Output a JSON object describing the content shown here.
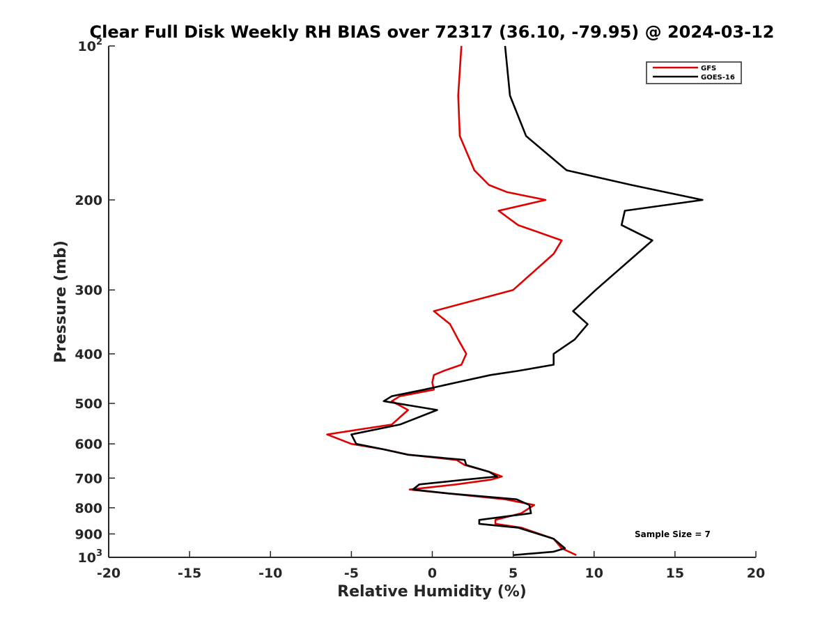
{
  "chart_data": {
    "type": "line",
    "title": "Clear Full Disk Weekly RH BIAS over 72317 (36.10, -79.95) @ 2024-03-12",
    "xlabel": "Relative Humidity (%)",
    "ylabel": "Pressure (mb)",
    "xlim": [
      -20,
      20
    ],
    "ylim": [
      100,
      1000
    ],
    "y_scale": "log",
    "y_reversed": true,
    "x_ticks": [
      "-20",
      "-15",
      "-10",
      "-5",
      "0",
      "5",
      "10",
      "15",
      "20"
    ],
    "y_ticks": [
      {
        "value": 100,
        "base": "10",
        "exp": "2"
      },
      {
        "value": 200,
        "base": "200",
        "exp": ""
      },
      {
        "value": 300,
        "base": "300",
        "exp": ""
      },
      {
        "value": 400,
        "base": "400",
        "exp": ""
      },
      {
        "value": 500,
        "base": "500",
        "exp": ""
      },
      {
        "value": 600,
        "base": "600",
        "exp": ""
      },
      {
        "value": 700,
        "base": "700",
        "exp": ""
      },
      {
        "value": 800,
        "base": "800",
        "exp": ""
      },
      {
        "value": 900,
        "base": "900",
        "exp": ""
      },
      {
        "value": 1000,
        "base": "10",
        "exp": "3"
      }
    ],
    "grid": false,
    "legend_position": "top-right",
    "annotation": "Sample Size = 7",
    "series": [
      {
        "name": "GFS",
        "color": "#e00000",
        "points": [
          [
            1.8,
            100
          ],
          [
            1.6,
            125
          ],
          [
            1.7,
            150
          ],
          [
            2.6,
            175
          ],
          [
            3.5,
            187
          ],
          [
            4.6,
            193
          ],
          [
            7.0,
            200
          ],
          [
            4.1,
            210
          ],
          [
            5.3,
            224
          ],
          [
            8.0,
            240
          ],
          [
            7.5,
            255
          ],
          [
            5.0,
            300
          ],
          [
            0.1,
            330
          ],
          [
            1.1,
            350
          ],
          [
            1.6,
            375
          ],
          [
            2.1,
            400
          ],
          [
            1.8,
            420
          ],
          [
            0.7,
            432
          ],
          [
            0.1,
            440
          ],
          [
            0.0,
            455
          ],
          [
            0.1,
            470
          ],
          [
            -2.0,
            484
          ],
          [
            -2.5,
            495
          ],
          [
            -1.5,
            515
          ],
          [
            -2.5,
            550
          ],
          [
            -6.5,
            575
          ],
          [
            -5.0,
            600
          ],
          [
            -3.0,
            615
          ],
          [
            -1.5,
            630
          ],
          [
            1.5,
            645
          ],
          [
            2.0,
            660
          ],
          [
            3.5,
            680
          ],
          [
            4.3,
            695
          ],
          [
            3.6,
            705
          ],
          [
            1.5,
            720
          ],
          [
            -1.4,
            737
          ],
          [
            1.0,
            750
          ],
          [
            4.5,
            770
          ],
          [
            6.3,
            790
          ],
          [
            5.5,
            820
          ],
          [
            3.9,
            845
          ],
          [
            3.9,
            860
          ],
          [
            5.5,
            875
          ],
          [
            7.5,
            920
          ],
          [
            8.0,
            960
          ],
          [
            8.9,
            990
          ]
        ]
      },
      {
        "name": "GOES-16",
        "color": "#000000",
        "points": [
          [
            4.5,
            100
          ],
          [
            4.8,
            125
          ],
          [
            5.8,
            150
          ],
          [
            8.3,
            175
          ],
          [
            12.3,
            187
          ],
          [
            16.7,
            200
          ],
          [
            11.9,
            210
          ],
          [
            11.7,
            224
          ],
          [
            13.6,
            240
          ],
          [
            10.1,
            300
          ],
          [
            8.7,
            330
          ],
          [
            9.6,
            350
          ],
          [
            8.8,
            375
          ],
          [
            7.5,
            400
          ],
          [
            7.5,
            420
          ],
          [
            5.3,
            432
          ],
          [
            3.6,
            440
          ],
          [
            1.5,
            455
          ],
          [
            -0.5,
            470
          ],
          [
            -2.5,
            484
          ],
          [
            -3.0,
            495
          ],
          [
            0.3,
            515
          ],
          [
            -2.0,
            550
          ],
          [
            -5.0,
            575
          ],
          [
            -4.7,
            600
          ],
          [
            -3.0,
            615
          ],
          [
            -1.5,
            630
          ],
          [
            2.0,
            645
          ],
          [
            2.1,
            660
          ],
          [
            3.5,
            680
          ],
          [
            4.0,
            695
          ],
          [
            2.0,
            705
          ],
          [
            -0.8,
            720
          ],
          [
            -1.2,
            737
          ],
          [
            1.0,
            750
          ],
          [
            5.2,
            770
          ],
          [
            6.0,
            790
          ],
          [
            6.1,
            820
          ],
          [
            2.9,
            845
          ],
          [
            2.9,
            860
          ],
          [
            5.3,
            875
          ],
          [
            7.5,
            920
          ],
          [
            8.2,
            960
          ],
          [
            7.5,
            975
          ],
          [
            5.0,
            990
          ]
        ]
      }
    ]
  }
}
